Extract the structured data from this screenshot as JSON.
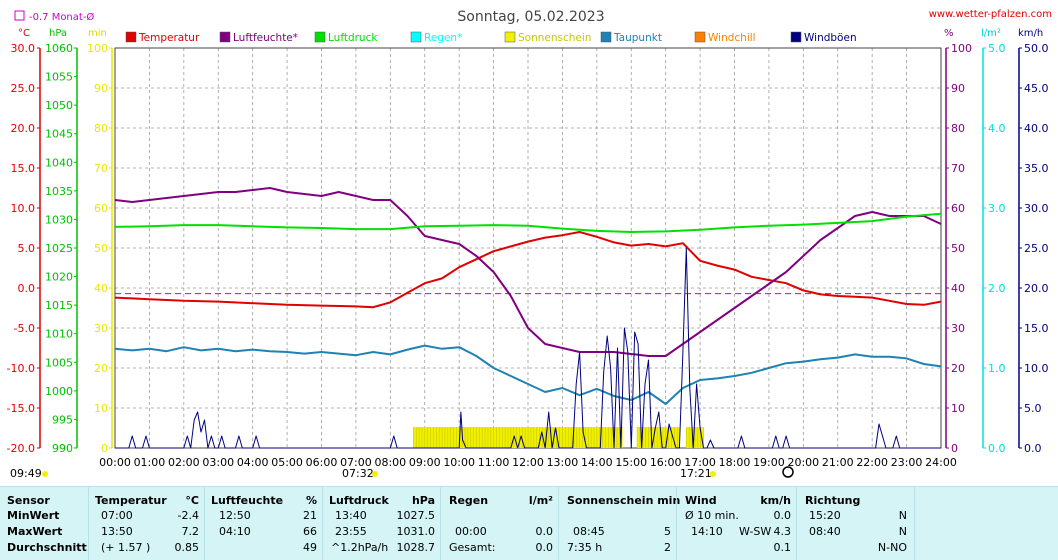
{
  "header": {
    "title": "Sonntag, 05.02.2023",
    "site": "www.wetter-pfalzen.com",
    "monthly_avg_legend": "-0.7 Monat-Ø",
    "unit_c": "°C",
    "unit_hpa": "hPa",
    "unit_min": "min",
    "unit_pct": "%",
    "unit_lm2": "l/m²",
    "unit_kmh": "km/h"
  },
  "legend": [
    {
      "label": "Temperatur",
      "color": "#e00000"
    },
    {
      "label": "Luftfeuchte*",
      "color": "#800080"
    },
    {
      "label": "Luftdruck",
      "color": "#00e000"
    },
    {
      "label": "Regen*",
      "color": "#00ffff"
    },
    {
      "label": "Sonnenschein",
      "color": "#f0f000"
    },
    {
      "label": "Taupunkt",
      "color": "#1e82b4"
    },
    {
      "label": "Windchill",
      "color": "#ff8000"
    },
    {
      "label": "Windböen",
      "color": "#000080"
    }
  ],
  "sun_markers": {
    "sunrise": "07:32",
    "sunset": "17:21",
    "first_time": "09:49"
  },
  "chart_data": {
    "type": "line",
    "x_range": [
      0,
      24
    ],
    "x_ticks": [
      "00:00",
      "01:00",
      "02:00",
      "03:00",
      "04:00",
      "05:00",
      "06:00",
      "07:00",
      "08:00",
      "09:00",
      "10:00",
      "11:00",
      "12:00",
      "13:00",
      "14:00",
      "15:00",
      "16:00",
      "17:00",
      "18:00",
      "19:00",
      "20:00",
      "21:00",
      "22:00",
      "23:00",
      "24:00"
    ],
    "axes": {
      "temperature": {
        "unit": "°C",
        "range": [
          -20,
          30
        ],
        "ticks": [
          "30.0",
          "25.0",
          "20.0",
          "15.0",
          "10.0",
          "5.0",
          "0.0",
          "-5.0",
          "-10.0",
          "-15.0",
          "-20.0"
        ],
        "color": "#e00000"
      },
      "pressure": {
        "unit": "hPa",
        "range": [
          990,
          1060
        ],
        "ticks": [
          "1060",
          "1055",
          "1050",
          "1045",
          "1040",
          "1035",
          "1030",
          "1025",
          "1020",
          "1015",
          "1010",
          "1005",
          "1000",
          "995",
          "990"
        ],
        "color": "#00c000"
      },
      "sunshine": {
        "unit": "min",
        "range": [
          0,
          100
        ],
        "ticks": [
          "100",
          "90",
          "80",
          "70",
          "60",
          "50",
          "40",
          "30",
          "20",
          "10",
          "0"
        ],
        "color": "#e8e800"
      },
      "humidity": {
        "unit": "%",
        "range": [
          0,
          100
        ],
        "ticks": [
          "100",
          "90",
          "80",
          "70",
          "60",
          "50",
          "40",
          "30",
          "20",
          "10",
          "0"
        ],
        "color": "#800080"
      },
      "rain": {
        "unit": "l/m²",
        "range": [
          0,
          5
        ],
        "ticks": [
          "5.0",
          "4.0",
          "3.0",
          "2.0",
          "1.0",
          "0.0"
        ],
        "color": "#00e0e0"
      },
      "wind": {
        "unit": "km/h",
        "range": [
          0,
          50
        ],
        "ticks": [
          "50.0",
          "45.0",
          "40.0",
          "35.0",
          "30.0",
          "25.0",
          "20.0",
          "15.0",
          "10.0",
          "5.0",
          "0.0"
        ],
        "color": "#000080"
      }
    },
    "monthly_avg_temperature": -0.7,
    "series": [
      {
        "name": "Temperatur",
        "axis": "temperature",
        "color": "#e00000",
        "x": [
          0,
          1,
          2,
          3,
          4,
          5,
          6,
          7,
          7.5,
          8,
          8.5,
          9,
          9.5,
          10,
          10.5,
          11,
          11.5,
          12,
          12.5,
          13,
          13.5,
          14,
          14.5,
          15,
          15.5,
          16,
          16.5,
          17,
          17.5,
          18,
          18.5,
          19,
          19.5,
          20,
          20.5,
          21,
          21.5,
          22,
          22.5,
          23,
          23.5,
          24
        ],
        "y": [
          -1.2,
          -1.4,
          -1.6,
          -1.7,
          -1.9,
          -2.1,
          -2.2,
          -2.3,
          -2.4,
          -1.8,
          -0.6,
          0.6,
          1.2,
          2.6,
          3.6,
          4.6,
          5.2,
          5.8,
          6.3,
          6.6,
          7.0,
          6.4,
          5.7,
          5.3,
          5.5,
          5.2,
          5.6,
          3.4,
          2.8,
          2.3,
          1.4,
          1.0,
          0.6,
          -0.3,
          -0.8,
          -1.0,
          -1.1,
          -1.2,
          -1.6,
          -2.0,
          -2.1,
          -1.7
        ]
      },
      {
        "name": "Luftfeuchte*",
        "axis": "humidity",
        "color": "#800080",
        "x": [
          0,
          0.5,
          1,
          1.5,
          2,
          2.5,
          3,
          3.5,
          4,
          4.5,
          5,
          5.5,
          6,
          6.5,
          7,
          7.5,
          8,
          8.5,
          9,
          9.5,
          10,
          10.5,
          11,
          11.5,
          12,
          12.5,
          13,
          13.5,
          14,
          14.5,
          15,
          15.5,
          16,
          16.5,
          17,
          17.5,
          18,
          18.5,
          19,
          19.5,
          20,
          20.5,
          21,
          21.5,
          22,
          22.5,
          23,
          23.5,
          24
        ],
        "y": [
          62,
          61.5,
          62,
          62.5,
          63,
          63.5,
          64,
          64,
          64.5,
          65,
          64,
          63.5,
          63,
          64,
          63,
          62,
          62,
          58,
          53,
          52,
          51,
          48,
          44,
          38,
          30,
          26,
          25,
          24,
          24,
          24,
          23.5,
          23,
          23,
          26,
          29,
          32,
          35,
          38,
          41,
          44,
          48,
          52,
          55,
          58,
          59,
          58,
          58,
          58,
          56
        ]
      },
      {
        "name": "Luftdruck",
        "axis": "pressure",
        "color": "#00e000",
        "x": [
          0,
          1,
          2,
          3,
          4,
          5,
          6,
          7,
          8,
          9,
          10,
          11,
          12,
          13,
          14,
          15,
          16,
          17,
          18,
          19,
          20,
          21,
          22,
          23,
          24
        ],
        "y": [
          1028.7,
          1028.8,
          1029.0,
          1029.0,
          1028.8,
          1028.6,
          1028.5,
          1028.3,
          1028.3,
          1028.8,
          1028.9,
          1029.0,
          1028.9,
          1028.4,
          1028.0,
          1027.8,
          1027.9,
          1028.2,
          1028.6,
          1028.9,
          1029.1,
          1029.4,
          1029.7,
          1030.5,
          1031.0
        ]
      },
      {
        "name": "Taupunkt",
        "axis": "temperature",
        "color": "#1e82b4",
        "x": [
          0,
          0.5,
          1,
          1.5,
          2,
          2.5,
          3,
          3.5,
          4,
          4.5,
          5,
          5.5,
          6,
          6.5,
          7,
          7.5,
          8,
          8.5,
          9,
          9.5,
          10,
          10.5,
          11,
          11.5,
          12,
          12.5,
          13,
          13.5,
          14,
          14.5,
          15,
          15.5,
          16,
          16.5,
          17,
          17.5,
          18,
          18.5,
          19,
          19.5,
          20,
          20.5,
          21,
          21.5,
          22,
          22.5,
          23,
          23.5,
          24
        ],
        "y": [
          -7.6,
          -7.8,
          -7.6,
          -7.9,
          -7.4,
          -7.8,
          -7.6,
          -7.9,
          -7.7,
          -7.9,
          -8.0,
          -8.2,
          -8.0,
          -8.2,
          -8.4,
          -8.0,
          -8.3,
          -7.7,
          -7.2,
          -7.6,
          -7.4,
          -8.5,
          -10.0,
          -11.0,
          -12.0,
          -13.0,
          -12.5,
          -13.4,
          -12.6,
          -13.5,
          -14.0,
          -13.0,
          -14.5,
          -12.5,
          -11.5,
          -11.3,
          -11.0,
          -10.6,
          -10.0,
          -9.4,
          -9.2,
          -8.9,
          -8.7,
          -8.3,
          -8.6,
          -8.6,
          -8.8,
          -9.5,
          -9.8
        ]
      },
      {
        "name": "Windböen",
        "axis": "wind",
        "color": "#000080",
        "x": [
          0,
          0.4,
          0.5,
          0.6,
          0.8,
          0.9,
          1.0,
          2.0,
          2.1,
          2.2,
          2.3,
          2.4,
          2.5,
          2.6,
          2.7,
          2.8,
          2.9,
          3.0,
          3.1,
          3.2,
          3.3,
          3.5,
          3.6,
          3.7,
          4.0,
          4.1,
          4.2,
          4.3,
          4.5,
          8.0,
          8.1,
          8.2,
          10.0,
          10.05,
          10.1,
          10.2,
          11.5,
          11.6,
          11.7,
          11.8,
          11.9,
          12.0,
          12.3,
          12.4,
          12.5,
          12.6,
          12.7,
          12.8,
          12.9,
          13.0,
          13.3,
          13.4,
          13.5,
          13.6,
          13.7,
          13.8,
          14.1,
          14.2,
          14.3,
          14.4,
          14.5,
          14.6,
          14.7,
          14.8,
          14.9,
          15.0,
          15.1,
          15.2,
          15.3,
          15.4,
          15.5,
          15.6,
          15.7,
          15.8,
          15.9,
          16.0,
          16.1,
          16.2,
          16.3,
          16.4,
          16.5,
          16.6,
          16.7,
          16.8,
          16.9,
          17.0,
          17.1,
          17.2,
          17.3,
          17.4,
          18.0,
          18.1,
          18.2,
          18.3,
          19.0,
          19.1,
          19.2,
          19.3,
          19.4,
          19.5,
          19.6,
          19.7,
          19.8,
          20.0,
          22.0,
          22.1,
          22.2,
          22.3,
          22.4,
          22.6,
          22.7,
          22.8,
          24.0
        ],
        "y": [
          0,
          0,
          1.5,
          0,
          0,
          1.5,
          0,
          0,
          1.5,
          0,
          3.5,
          4.5,
          2,
          3.5,
          0,
          1.5,
          0,
          0,
          1.5,
          0,
          0,
          0,
          1.5,
          0,
          0,
          1.5,
          0,
          0,
          0,
          0,
          1.5,
          0,
          0,
          4.5,
          1,
          0,
          0,
          1.5,
          0,
          1.5,
          0,
          0,
          0,
          2,
          0,
          4.5,
          0,
          2.5,
          0,
          0,
          0,
          8,
          12,
          2,
          0,
          0,
          0,
          9.5,
          14,
          10,
          0,
          12.5,
          0,
          15,
          12,
          0,
          14.5,
          13,
          0,
          8,
          11,
          0,
          2.5,
          4.5,
          0,
          0,
          3,
          1.5,
          0,
          0,
          12,
          25,
          7.5,
          0,
          8,
          2.5,
          0,
          0,
          1,
          0,
          0,
          0,
          1.5,
          0,
          0,
          0,
          1.5,
          0,
          0,
          1.5,
          0,
          0,
          0,
          0,
          0,
          0,
          3,
          1.5,
          0,
          0,
          1.5,
          0,
          0
        ]
      },
      {
        "name": "Sonnenschein",
        "axis": "sunshine",
        "color": "#f0f000",
        "intervals": [
          [
            8.67,
            14.75
          ],
          [
            15.17,
            16.4
          ],
          [
            16.6,
            17.1
          ]
        ],
        "value": 5
      }
    ]
  },
  "table": {
    "headers": {
      "sensor": "Sensor",
      "temperature": {
        "label": "Temperatur",
        "unit": "°C"
      },
      "humidity": {
        "label": "Luftfeuchte",
        "unit": "%"
      },
      "pressure": {
        "label": "Luftdruck",
        "unit": "hPa"
      },
      "rain": {
        "label": "Regen",
        "unit": "l/m²"
      },
      "sun": {
        "label": "Sonnenschein min"
      },
      "wind": {
        "label": "Wind",
        "unit": "km/h"
      },
      "direction": {
        "label": "Richtung"
      }
    },
    "rows": [
      {
        "label": "MinWert",
        "temp_time": "07:00",
        "temp_val": "-2.4",
        "hum_time": "12:50",
        "hum_val": "21",
        "pres_time": "13:40",
        "pres_val": "1027.5",
        "rain_time": "",
        "rain_val": "",
        "sun_time": "",
        "sun_val": "",
        "wind_time": "Ø 10 min.",
        "wind_dir": "",
        "wind_val": "0.0",
        "dir_time": "15:20",
        "dir_val": "N"
      },
      {
        "label": "MaxWert",
        "temp_time": "13:50",
        "temp_val": "7.2",
        "hum_time": "04:10",
        "hum_val": "66",
        "pres_time": "23:55",
        "pres_val": "1031.0",
        "rain_time": "00:00",
        "rain_val": "0.0",
        "sun_time": "08:45",
        "sun_val": "5",
        "wind_time": "14:10",
        "wind_dir": "W-SW",
        "wind_val": "4.3",
        "dir_time": "08:40",
        "dir_val": "N"
      },
      {
        "label": "Durchschnitt",
        "temp_time": "(+ 1.57 )",
        "temp_val": "0.85",
        "hum_time": "",
        "hum_val": "49",
        "pres_time": "^1.2hPa/h",
        "pres_val": "1028.7",
        "rain_time": "Gesamt:",
        "rain_val": "0.0",
        "sun_time": "7:35 h",
        "sun_val": "2",
        "wind_time": "",
        "wind_dir": "",
        "wind_val": "0.1",
        "dir_time": "",
        "dir_val": "N-NO"
      }
    ]
  }
}
